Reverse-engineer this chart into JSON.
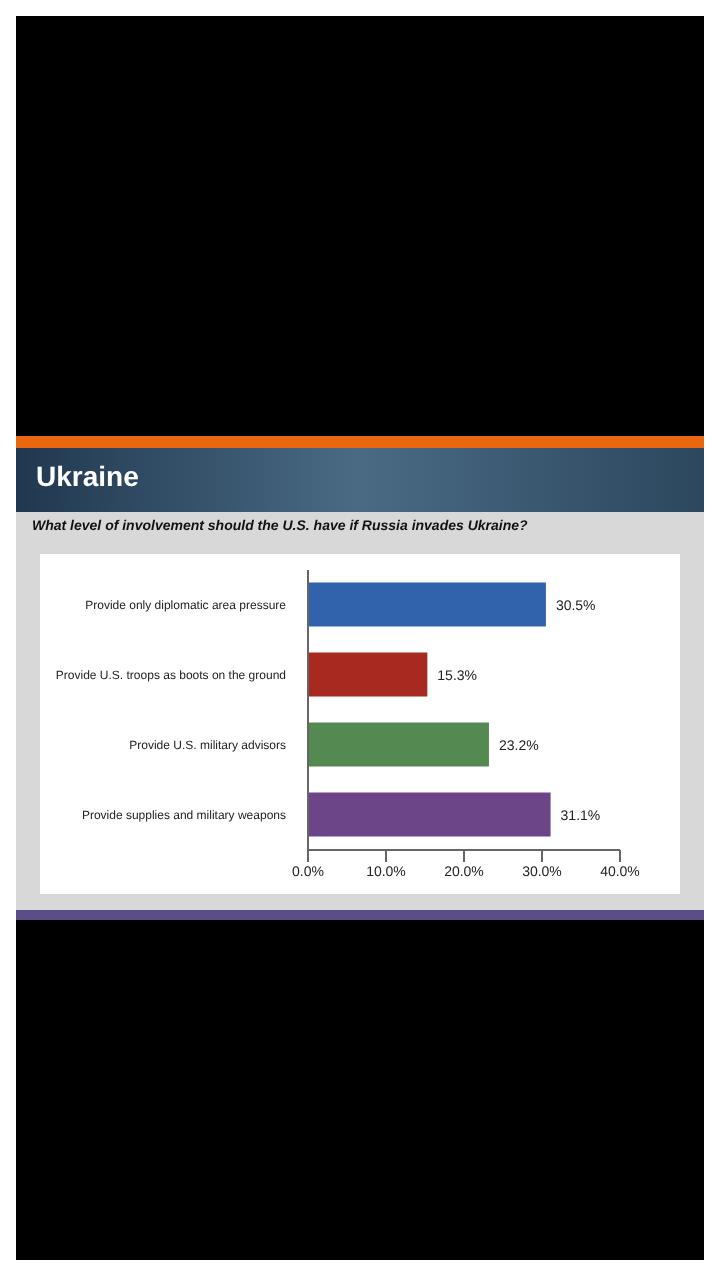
{
  "chart_data": {
    "type": "bar",
    "orientation": "horizontal",
    "title": "Ukraine",
    "subtitle": "What level of involvement should the U.S. have if Russia invades Ukraine?",
    "categories": [
      "Provide only diplomatic area pressure",
      "Provide U.S. troops as boots on the ground",
      "Provide U.S. military advisors",
      "Provide supplies and military weapons"
    ],
    "values": [
      30.5,
      15.3,
      23.2,
      31.1
    ],
    "value_labels": [
      "30.5%",
      "15.3%",
      "23.2%",
      "31.1%"
    ],
    "colors": [
      "#3162ac",
      "#a8291f",
      "#548a51",
      "#6b4588"
    ],
    "xlim": [
      0,
      40
    ],
    "xticks": [
      {
        "value": 0,
        "label": "0.0%"
      },
      {
        "value": 10,
        "label": "10.0%"
      },
      {
        "value": 20,
        "label": "20.0%"
      },
      {
        "value": 30,
        "label": "30.0%"
      },
      {
        "value": 40,
        "label": "40.0%"
      }
    ],
    "grid": false
  }
}
